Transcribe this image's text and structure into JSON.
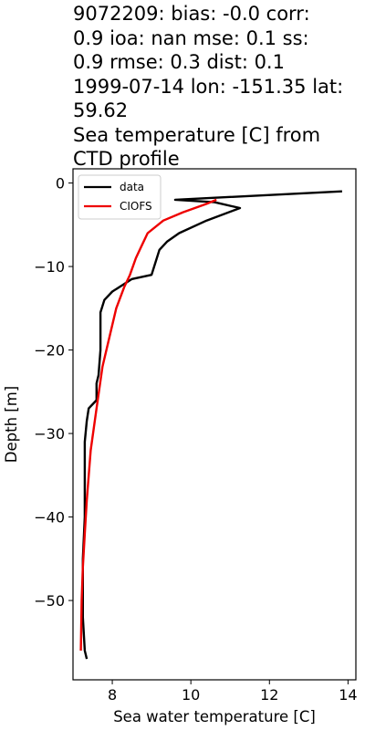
{
  "chart_data": {
    "type": "line",
    "title": "9072209: bias: -0.0  corr:\n0.9  ioa: nan  mse: 0.1  ss:\n0.9  rmse: 0.3  dist: 0.1\n1999-07-14 lon: -151.35 lat:\n59.62\nSea temperature [C] from\nCTD profile",
    "xlabel": "Sea water temperature [C]",
    "ylabel": "Depth [m]",
    "xlim": [
      7.0,
      14.2
    ],
    "ylim": [
      -59.5,
      1.7
    ],
    "xticks": [
      8,
      10,
      12,
      14
    ],
    "yticks": [
      0,
      -10,
      -20,
      -30,
      -40,
      -50
    ],
    "xtick_labels": [
      "8",
      "10",
      "12",
      "14"
    ],
    "ytick_labels": [
      "0",
      "−10",
      "−20",
      "−30",
      "−40",
      "−50"
    ],
    "grid": false,
    "legend_position": "top-left",
    "series": [
      {
        "name": "data",
        "color": "#000000",
        "points": [
          [
            13.85,
            -1
          ],
          [
            9.6,
            -2
          ],
          [
            10.6,
            -2.3
          ],
          [
            11.25,
            -3
          ],
          [
            10.4,
            -4.5
          ],
          [
            9.7,
            -6
          ],
          [
            9.4,
            -7
          ],
          [
            9.2,
            -8
          ],
          [
            9.1,
            -9.5
          ],
          [
            9.0,
            -11
          ],
          [
            8.5,
            -11.5
          ],
          [
            8.0,
            -13
          ],
          [
            7.8,
            -14
          ],
          [
            7.7,
            -15.5
          ],
          [
            7.7,
            -20
          ],
          [
            7.65,
            -23
          ],
          [
            7.6,
            -24
          ],
          [
            7.6,
            -26
          ],
          [
            7.4,
            -27
          ],
          [
            7.35,
            -28.5
          ],
          [
            7.3,
            -31
          ],
          [
            7.3,
            -40
          ],
          [
            7.25,
            -45
          ],
          [
            7.25,
            -52
          ],
          [
            7.3,
            -56
          ],
          [
            7.35,
            -57
          ]
        ]
      },
      {
        "name": "CIOFS",
        "color": "#ee0000",
        "points": [
          [
            10.65,
            -2
          ],
          [
            10.4,
            -2.5
          ],
          [
            9.8,
            -3.5
          ],
          [
            9.3,
            -4.5
          ],
          [
            8.9,
            -6
          ],
          [
            8.75,
            -7.5
          ],
          [
            8.6,
            -9
          ],
          [
            8.45,
            -11
          ],
          [
            8.3,
            -12.5
          ],
          [
            8.1,
            -15
          ],
          [
            7.95,
            -18
          ],
          [
            7.75,
            -22
          ],
          [
            7.6,
            -27
          ],
          [
            7.45,
            -32
          ],
          [
            7.35,
            -38
          ],
          [
            7.3,
            -42
          ],
          [
            7.25,
            -46
          ],
          [
            7.22,
            -50
          ],
          [
            7.2,
            -56
          ]
        ]
      }
    ]
  }
}
